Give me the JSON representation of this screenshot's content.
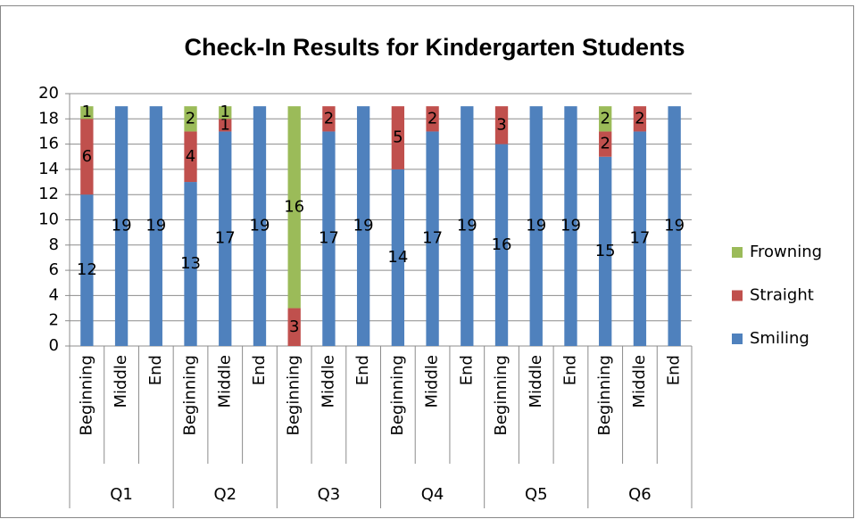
{
  "chart_data": {
    "type": "bar",
    "stacked": true,
    "title": "Check-In Results for Kindergarten Students",
    "groups": [
      "Q1",
      "Q2",
      "Q3",
      "Q4",
      "Q5",
      "Q6"
    ],
    "categories": [
      "Beginning",
      "Middle",
      "End",
      "Beginning",
      "Middle",
      "End",
      "Beginning",
      "Middle",
      "End",
      "Beginning",
      "Middle",
      "End",
      "Beginning",
      "Middle",
      "End",
      "Beginning",
      "Middle",
      "End"
    ],
    "series": [
      {
        "name": "Smiling",
        "color": "#4f81bd",
        "values": [
          12,
          19,
          19,
          13,
          17,
          19,
          null,
          17,
          19,
          14,
          17,
          19,
          16,
          19,
          19,
          15,
          17,
          19
        ]
      },
      {
        "name": "Straight",
        "color": "#c0504d",
        "values": [
          6,
          null,
          null,
          4,
          1,
          null,
          3,
          2,
          null,
          5,
          2,
          null,
          3,
          null,
          null,
          2,
          2,
          null
        ]
      },
      {
        "name": "Frowning",
        "color": "#9bbb59",
        "values": [
          1,
          null,
          null,
          2,
          1,
          null,
          16,
          null,
          null,
          null,
          null,
          null,
          null,
          null,
          null,
          2,
          null,
          null
        ]
      }
    ],
    "ylim": [
      0,
      20
    ],
    "yticks": [
      0,
      2,
      4,
      6,
      8,
      10,
      12,
      14,
      16,
      18,
      20
    ],
    "grid": true,
    "legend": "right"
  }
}
